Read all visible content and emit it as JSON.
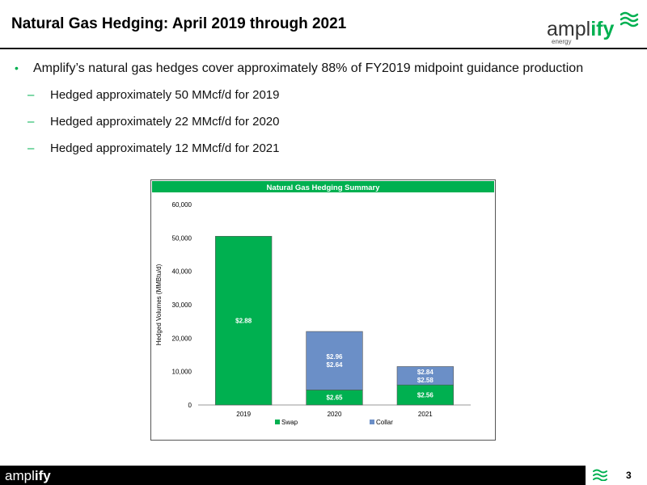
{
  "slide": {
    "title": "Natural Gas Hedging: April 2019 through 2021",
    "page_number": "3",
    "brand_green": "#00b050",
    "logo": {
      "word_main": "ampl",
      "word_accent": "ify",
      "tagline": "energy"
    },
    "footer_logo": {
      "word_main": "ampl",
      "word_accent": "ify"
    }
  },
  "bullets": {
    "main": "Amplify’s natural gas hedges cover approximately 88% of FY2019 midpoint guidance production",
    "subs": [
      "Hedged approximately 50 MMcf/d for 2019",
      "Hedged approximately 22 MMcf/d for 2020",
      "Hedged approximately 12 MMcf/d for 2021"
    ]
  },
  "chart_data": {
    "type": "bar",
    "stacked": true,
    "title": "Natural Gas Hedging Summary",
    "ylabel": "Hedged Volumes (MMBtu/d)",
    "xlabel": "",
    "ylim": [
      0,
      60000
    ],
    "yticks": [
      "0",
      "10,000",
      "20,000",
      "30,000",
      "40,000",
      "50,000",
      "60,000"
    ],
    "categories": [
      "2019",
      "2020",
      "2021"
    ],
    "series": [
      {
        "name": "Swap",
        "color": "#00b050",
        "values": [
          50500,
          4500,
          6000
        ],
        "labels": [
          [
            "$2.88"
          ],
          [
            "$2.65"
          ],
          [
            "$2.56"
          ]
        ]
      },
      {
        "name": "Collar",
        "color": "#6b8fc7",
        "values": [
          0,
          17500,
          5500
        ],
        "labels": [
          [],
          [
            "$2.96",
            "$2.64"
          ],
          [
            "$2.84",
            "$2.58"
          ]
        ]
      }
    ],
    "legend_position": "bottom",
    "grid": false
  }
}
